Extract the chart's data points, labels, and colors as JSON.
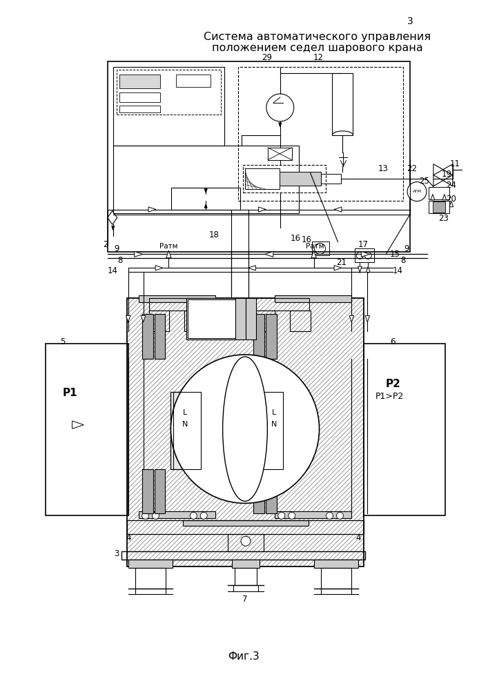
{
  "title_line1": "Система автоматического управления",
  "title_line2": "положением седел шарового крана",
  "page_number": "3",
  "fig_label": "Фиг.3",
  "bg_color": "#ffffff",
  "line_color": "#000000",
  "title_fontsize": 11.5,
  "label_fontsize": 8.5,
  "fig_label_fontsize": 11
}
